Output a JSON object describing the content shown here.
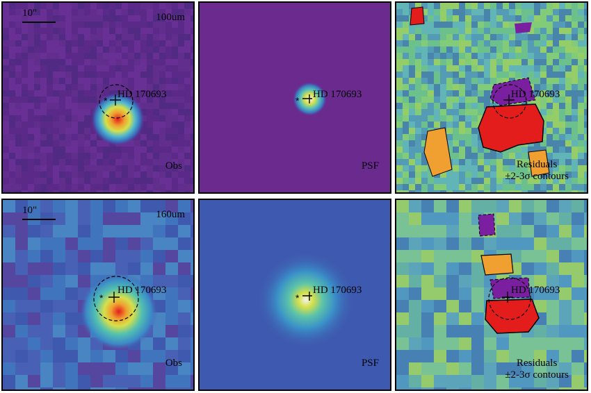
{
  "source_name": "HD 170693",
  "scale_label": "10\"",
  "rows": [
    {
      "band": "100um",
      "obs_label": "Obs",
      "psf_label": "PSF",
      "res_label_1": "Residuals",
      "res_label_2": "±2-3σ contours"
    },
    {
      "band": "160um",
      "obs_label": "Obs",
      "psf_label": "PSF",
      "res_label_1": "Residuals",
      "res_label_2": "±2-3σ contours"
    }
  ],
  "colors": {
    "background_obs_100": "#5b2a8a",
    "background_psf_100": "#6a2a8e",
    "residual_mid": "#7ec88a",
    "peak": "#e31c1c",
    "negative": "#7a1fa0"
  }
}
